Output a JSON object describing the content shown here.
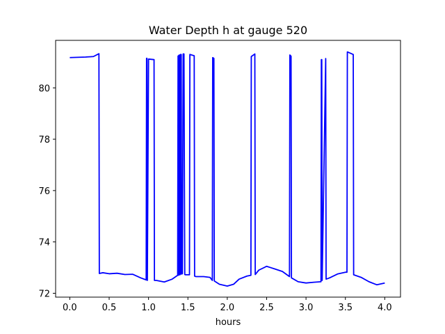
{
  "chart_data": {
    "type": "line",
    "title": "Water Depth h at gauge 520",
    "xlabel": "hours",
    "ylabel": "",
    "xlim": [
      -0.18,
      4.2
    ],
    "ylim": [
      71.85,
      81.85
    ],
    "xticks": [
      0.0,
      0.5,
      1.0,
      1.5,
      2.0,
      2.5,
      3.0,
      3.5,
      4.0
    ],
    "xtick_labels": [
      "0.0",
      "0.5",
      "1.0",
      "1.5",
      "2.0",
      "2.5",
      "3.0",
      "3.5",
      "4.0"
    ],
    "yticks": [
      72,
      74,
      76,
      78,
      80
    ],
    "ytick_labels": [
      "72",
      "74",
      "76",
      "78",
      "80"
    ],
    "grid": false,
    "series": [
      {
        "color": "#0000ff",
        "x": [
          0.0,
          0.1,
          0.2,
          0.3,
          0.37,
          0.375,
          0.42,
          0.5,
          0.6,
          0.7,
          0.8,
          0.9,
          0.97,
          0.975,
          0.98,
          0.985,
          1.0,
          1.005,
          1.07,
          1.075,
          1.1,
          1.2,
          1.3,
          1.37,
          1.375,
          1.38,
          1.385,
          1.39,
          1.395,
          1.4,
          1.405,
          1.41,
          1.415,
          1.42,
          1.43,
          1.44,
          1.45,
          1.46,
          1.47,
          1.52,
          1.525,
          1.58,
          1.585,
          1.6,
          1.7,
          1.78,
          1.81,
          1.815,
          1.83,
          1.835,
          1.9,
          2.0,
          2.08,
          2.15,
          2.25,
          2.3,
          2.305,
          2.35,
          2.355,
          2.4,
          2.5,
          2.55,
          2.6,
          2.7,
          2.79,
          2.795,
          2.81,
          2.815,
          2.9,
          3.0,
          3.1,
          3.19,
          3.195,
          3.2,
          3.205,
          3.25,
          3.255,
          3.3,
          3.4,
          3.5,
          3.52,
          3.525,
          3.6,
          3.605,
          3.7,
          3.8,
          3.9,
          4.0
        ],
        "y": [
          81.18,
          81.19,
          81.2,
          81.22,
          81.33,
          72.77,
          72.8,
          72.76,
          72.78,
          72.73,
          72.74,
          72.6,
          72.52,
          81.15,
          81.15,
          72.5,
          81.12,
          81.12,
          81.1,
          72.5,
          72.5,
          72.44,
          72.55,
          72.7,
          81.24,
          72.7,
          81.27,
          72.72,
          81.28,
          72.72,
          81.3,
          72.75,
          81.3,
          72.75,
          72.76,
          81.32,
          81.32,
          72.73,
          72.72,
          72.72,
          81.3,
          81.25,
          72.67,
          72.65,
          72.65,
          72.62,
          72.5,
          81.18,
          81.15,
          72.48,
          72.35,
          72.28,
          72.35,
          72.55,
          72.67,
          72.7,
          81.22,
          81.32,
          72.73,
          72.9,
          73.05,
          73.0,
          72.95,
          72.85,
          72.65,
          81.28,
          81.23,
          72.6,
          72.45,
          72.4,
          72.43,
          72.45,
          81.1,
          81.1,
          72.5,
          81.14,
          72.55,
          72.6,
          72.75,
          72.82,
          72.82,
          81.4,
          81.3,
          72.72,
          72.62,
          72.45,
          72.33,
          72.4
        ]
      }
    ]
  }
}
